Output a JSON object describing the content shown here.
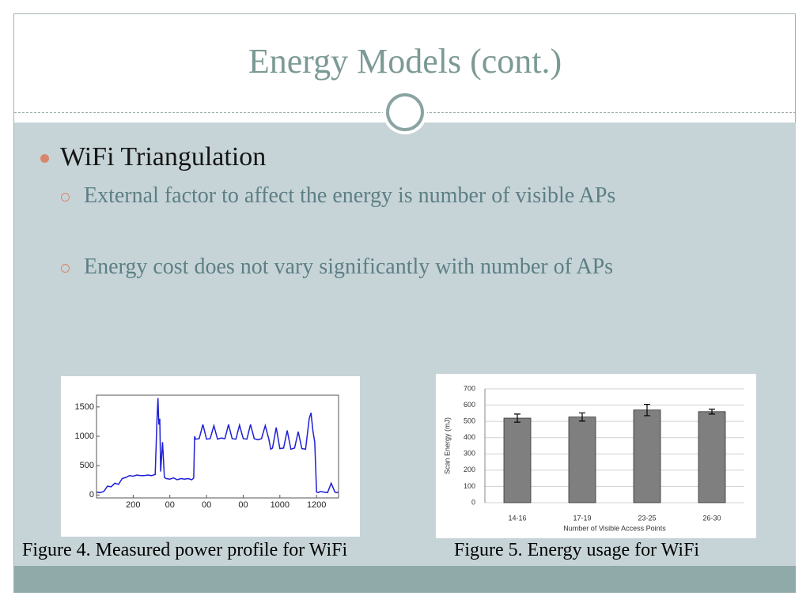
{
  "slide": {
    "title": "Energy Models (cont.)",
    "bullets": [
      {
        "text": "WiFi Triangulation",
        "sub": [
          "External factor to affect the energy is number of visible APs",
          "Energy cost does not vary significantly with number of APs"
        ]
      }
    ],
    "figures": [
      {
        "caption": "Figure 4. Measured power profile for WiFi",
        "chart": {
          "type": "line",
          "x": [
            0,
            20,
            40,
            60,
            80,
            100,
            120,
            140,
            160,
            180,
            200,
            220,
            240,
            260,
            280,
            300,
            320,
            330,
            335,
            340,
            345,
            350,
            360,
            370,
            380,
            400,
            420,
            440,
            460,
            480,
            500,
            520,
            530,
            535,
            540,
            560,
            580,
            600,
            620,
            640,
            660,
            680,
            700,
            720,
            740,
            760,
            780,
            800,
            820,
            840,
            860,
            880,
            900,
            920,
            940,
            950,
            960,
            980,
            1000,
            1020,
            1040,
            1060,
            1080,
            1100,
            1120,
            1140,
            1160,
            1170,
            1180,
            1190,
            1200,
            1210,
            1220,
            1240,
            1260,
            1280,
            1300,
            1310,
            1320
          ],
          "series": [
            {
              "color": "#1f1fd6",
              "values": [
                50,
                40,
                60,
                150,
                140,
                200,
                180,
                280,
                300,
                330,
                320,
                340,
                330,
                330,
                340,
                330,
                350,
                1300,
                1650,
                1200,
                1300,
                400,
                900,
                300,
                280,
                270,
                290,
                260,
                280,
                270,
                280,
                260,
                290,
                1000,
                950,
                960,
                1200,
                950,
                960,
                1180,
                950,
                970,
                960,
                1200,
                960,
                950,
                1190,
                960,
                950,
                1200,
                960,
                940,
                960,
                1180,
                950,
                780,
                800,
                1150,
                790,
                800,
                1100,
                780,
                800,
                1080,
                790,
                780,
                1300,
                1400,
                1100,
                900,
                50,
                40,
                60,
                50,
                40,
                200,
                50,
                40,
                50
              ]
            }
          ],
          "xlim": [
            0,
            1320
          ],
          "xticks": [
            200,
            {
              "value": 400,
              "label": "00"
            },
            {
              "value": 600,
              "label": "00"
            },
            {
              "value": 800,
              "label": "00"
            },
            1000,
            1200
          ],
          "ylim": [
            -50,
            1700
          ],
          "yticks": [
            0,
            500,
            1000,
            1500
          ]
        }
      },
      {
        "caption": "Figure 5. Energy usage for WiFi",
        "chart": {
          "type": "bar",
          "y_label": "Scan Energy (mJ)",
          "x_label": "Number of Visible Access Points",
          "categories": [
            "14-16",
            "17-19",
            "23-25",
            "26-30"
          ],
          "values": [
            520,
            527,
            570,
            560
          ],
          "errors": [
            25,
            25,
            35,
            15
          ],
          "color": "#7f7f7f",
          "ylim": [
            0,
            700
          ],
          "yticks": [
            0,
            100,
            200,
            300,
            400,
            500,
            600,
            700
          ],
          "grid": true
        }
      }
    ]
  }
}
